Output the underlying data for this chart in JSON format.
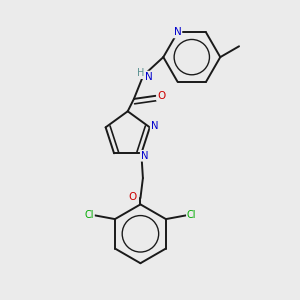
{
  "background_color": "#ebebeb",
  "bond_color": "#1a1a1a",
  "atom_colors": {
    "N": "#0000cc",
    "O": "#cc0000",
    "Cl": "#00aa00",
    "H": "#5a9090",
    "C": "#1a1a1a"
  },
  "lw": 1.4,
  "fontsize": 7.0
}
